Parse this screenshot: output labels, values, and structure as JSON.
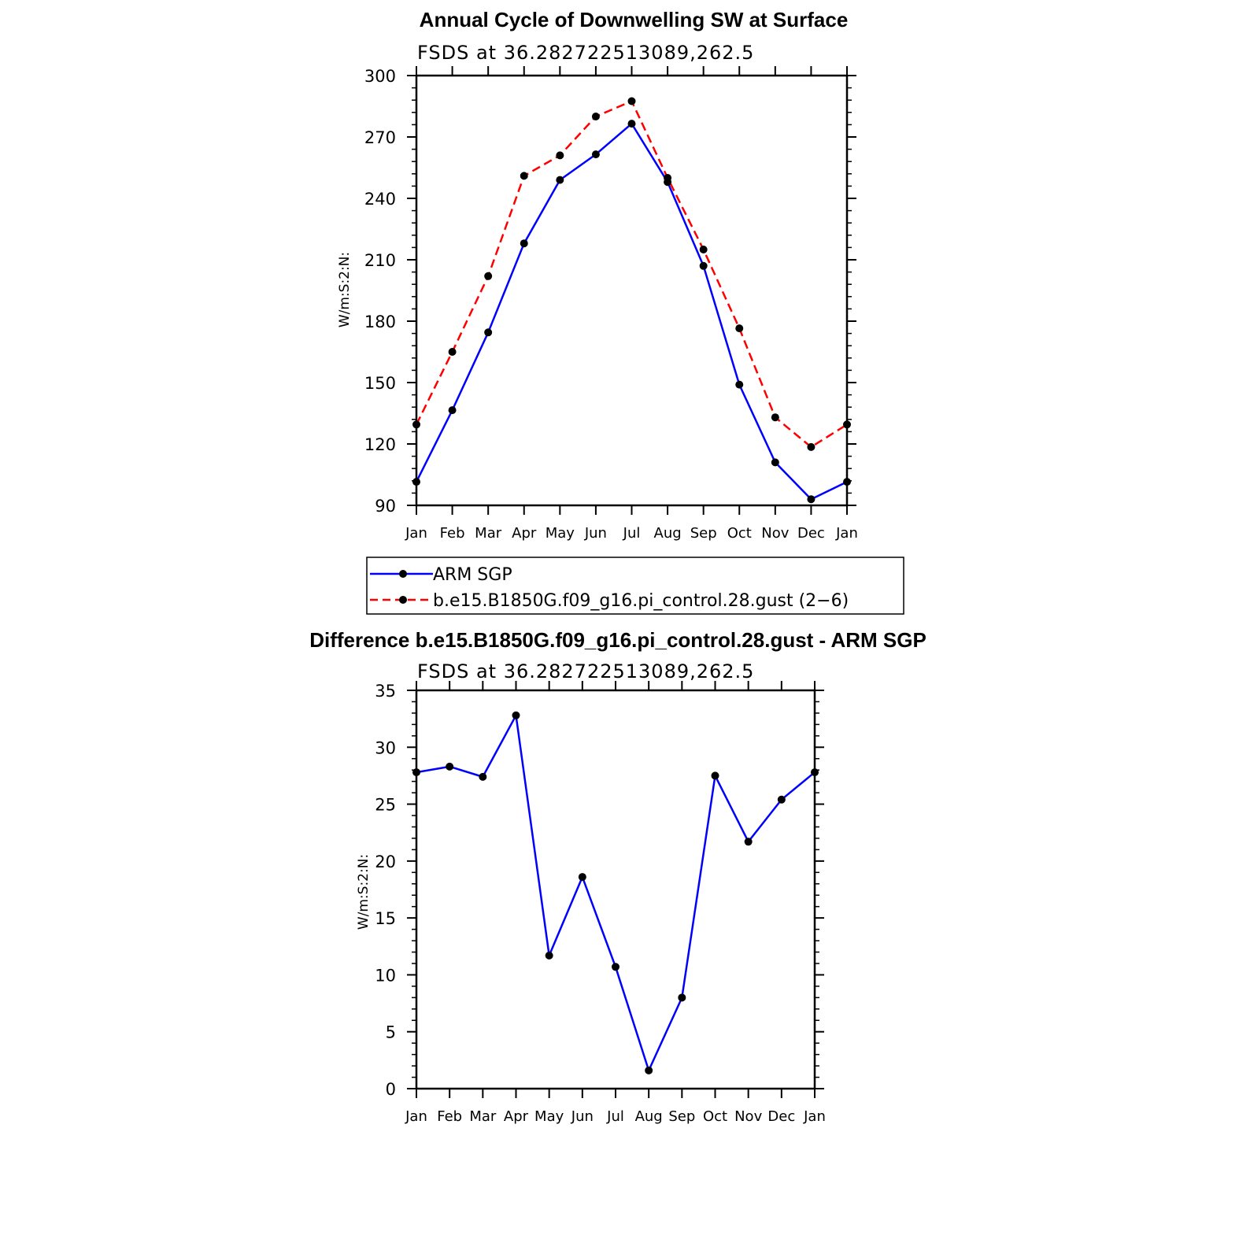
{
  "chart_data": [
    {
      "type": "line",
      "title": "Annual Cycle of Downwelling SW at Surface",
      "subtitle": "FSDS at 36.282722513089,262.5",
      "xlabel": "",
      "ylabel": "W/m:S:2:N:",
      "categories": [
        "Jan",
        "Feb",
        "Mar",
        "Apr",
        "May",
        "Jun",
        "Jul",
        "Aug",
        "Sep",
        "Oct",
        "Nov",
        "Dec",
        "Jan"
      ],
      "ylim": [
        90,
        300
      ],
      "yticks": [
        90,
        120,
        150,
        180,
        210,
        240,
        270,
        300
      ],
      "series": [
        {
          "name": "ARM SGP",
          "color": "#0000ff",
          "style": "solid",
          "values": [
            101.5,
            136.5,
            174.5,
            218,
            249,
            261.5,
            276.5,
            248,
            207,
            149,
            111,
            93,
            101.5
          ]
        },
        {
          "name": "b.e15.B1850G.f09_g16.pi_control.28.gust (2−6)",
          "color": "#ff0000",
          "style": "dashed",
          "values": [
            129.5,
            165,
            202,
            251,
            261,
            280,
            287.5,
            250,
            215,
            176.5,
            133,
            118.5,
            129.5
          ]
        }
      ],
      "legend": "below"
    },
    {
      "type": "line",
      "title": "Difference b.e15.B1850G.f09_g16.pi_control.28.gust - ARM SGP",
      "subtitle": "FSDS at 36.282722513089,262.5",
      "xlabel": "",
      "ylabel": "W/m:S:2:N:",
      "categories": [
        "Jan",
        "Feb",
        "Mar",
        "Apr",
        "May",
        "Jun",
        "Jul",
        "Aug",
        "Sep",
        "Oct",
        "Nov",
        "Dec",
        "Jan"
      ],
      "ylim": [
        0,
        35
      ],
      "yticks": [
        0,
        5,
        10,
        15,
        20,
        25,
        30,
        35
      ],
      "series": [
        {
          "name": "Difference",
          "color": "#0000ff",
          "style": "solid",
          "values": [
            27.8,
            28.3,
            27.4,
            32.8,
            11.7,
            18.6,
            10.7,
            1.6,
            8.0,
            27.5,
            21.7,
            25.4,
            27.8
          ]
        }
      ]
    }
  ]
}
